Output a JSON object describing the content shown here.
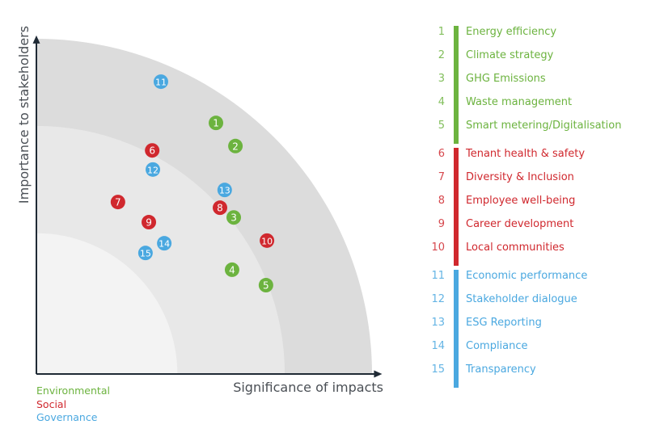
{
  "colors": {
    "environmental": "#6cb33f",
    "social": "#d0282e",
    "governance": "#4aa8e0",
    "band_outer": "#dcdcdc",
    "band_middle": "#e8e8e8",
    "band_inner": "#f3f3f3",
    "axis": "#1f2a35",
    "axis_label": "#4a4f55"
  },
  "chart_data": {
    "type": "scatter",
    "xlabel": "Significance of impacts",
    "ylabel": "Importance to stakeholders",
    "xlim": [
      0,
      103
    ],
    "ylim": [
      0,
      101
    ],
    "grid": false,
    "bands": [
      100,
      74,
      42
    ],
    "points": [
      {
        "id": "1",
        "category": "environmental",
        "x": 53.5,
        "y": 74.9
      },
      {
        "id": "2",
        "category": "environmental",
        "x": 59.3,
        "y": 68.0
      },
      {
        "id": "3",
        "category": "environmental",
        "x": 58.8,
        "y": 46.7
      },
      {
        "id": "4",
        "category": "environmental",
        "x": 58.3,
        "y": 31.1
      },
      {
        "id": "5",
        "category": "environmental",
        "x": 68.4,
        "y": 26.5
      },
      {
        "id": "6",
        "category": "social",
        "x": 34.5,
        "y": 66.7
      },
      {
        "id": "7",
        "category": "social",
        "x": 24.3,
        "y": 51.3
      },
      {
        "id": "8",
        "category": "social",
        "x": 54.7,
        "y": 49.6
      },
      {
        "id": "9",
        "category": "social",
        "x": 33.5,
        "y": 45.3
      },
      {
        "id": "10",
        "category": "social",
        "x": 68.7,
        "y": 39.8
      },
      {
        "id": "11",
        "category": "governance",
        "x": 37.1,
        "y": 87.2
      },
      {
        "id": "12",
        "category": "governance",
        "x": 34.7,
        "y": 61.0
      },
      {
        "id": "13",
        "category": "governance",
        "x": 56.1,
        "y": 54.9
      },
      {
        "id": "14",
        "category": "governance",
        "x": 38.1,
        "y": 39.0
      },
      {
        "id": "15",
        "category": "governance",
        "x": 32.5,
        "y": 36.1
      }
    ]
  },
  "categories": [
    {
      "key": "environmental",
      "label": "Environmental"
    },
    {
      "key": "social",
      "label": "Social"
    },
    {
      "key": "governance",
      "label": "Governance"
    }
  ],
  "legend": [
    {
      "category": "environmental",
      "items": [
        {
          "num": "1",
          "label": "Energy efficiency"
        },
        {
          "num": "2",
          "label": "Climate strategy"
        },
        {
          "num": "3",
          "label": "GHG Emissions"
        },
        {
          "num": "4",
          "label": "Waste management"
        },
        {
          "num": "5",
          "label": "Smart metering/Digitalisation"
        }
      ]
    },
    {
      "category": "social",
      "items": [
        {
          "num": "6",
          "label": "Tenant health & safety"
        },
        {
          "num": "7",
          "label": "Diversity & Inclusion"
        },
        {
          "num": "8",
          "label": "Employee well-being"
        },
        {
          "num": "9",
          "label": "Career development"
        },
        {
          "num": "10",
          "label": "Local communities"
        }
      ]
    },
    {
      "category": "governance",
      "items": [
        {
          "num": "11",
          "label": "Economic performance"
        },
        {
          "num": "12",
          "label": "Stakeholder dialogue"
        },
        {
          "num": "13",
          "label": "ESG Reporting"
        },
        {
          "num": "14",
          "label": "Compliance"
        },
        {
          "num": "15",
          "label": "Transparency"
        }
      ]
    }
  ]
}
